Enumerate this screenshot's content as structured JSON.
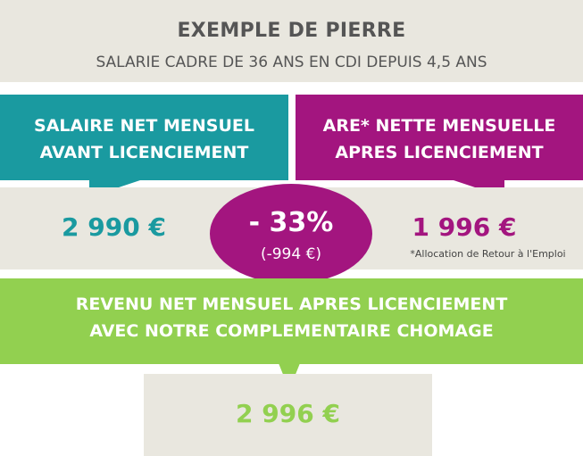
{
  "header": {
    "title": "EXEMPLE DE PIERRE",
    "subtitle": "SALARIE CADRE DE 36 ANS EN CDI DEPUIS 4,5 ANS"
  },
  "left": {
    "label_line1": "SALAIRE NET MENSUEL",
    "label_line2": "AVANT LICENCIEMENT",
    "amount": "2 990 €",
    "color": "#1a9aa0"
  },
  "right": {
    "label_line1": "ARE* NETTE MENSUELLE",
    "label_line2": "APRES LICENCIEMENT",
    "amount": "1 996 €",
    "footnote": "*Allocation de Retour à l'Emploi",
    "color": "#a3157f"
  },
  "difference": {
    "percent": "- 33%",
    "amount": "(-994 €)"
  },
  "bottom": {
    "label_line1": "REVENU NET MENSUEL APRES LICENCIEMENT",
    "label_line2": "AVEC NOTRE COMPLEMENTAIRE CHOMAGE",
    "amount": "2 996 €",
    "color": "#92d050"
  }
}
